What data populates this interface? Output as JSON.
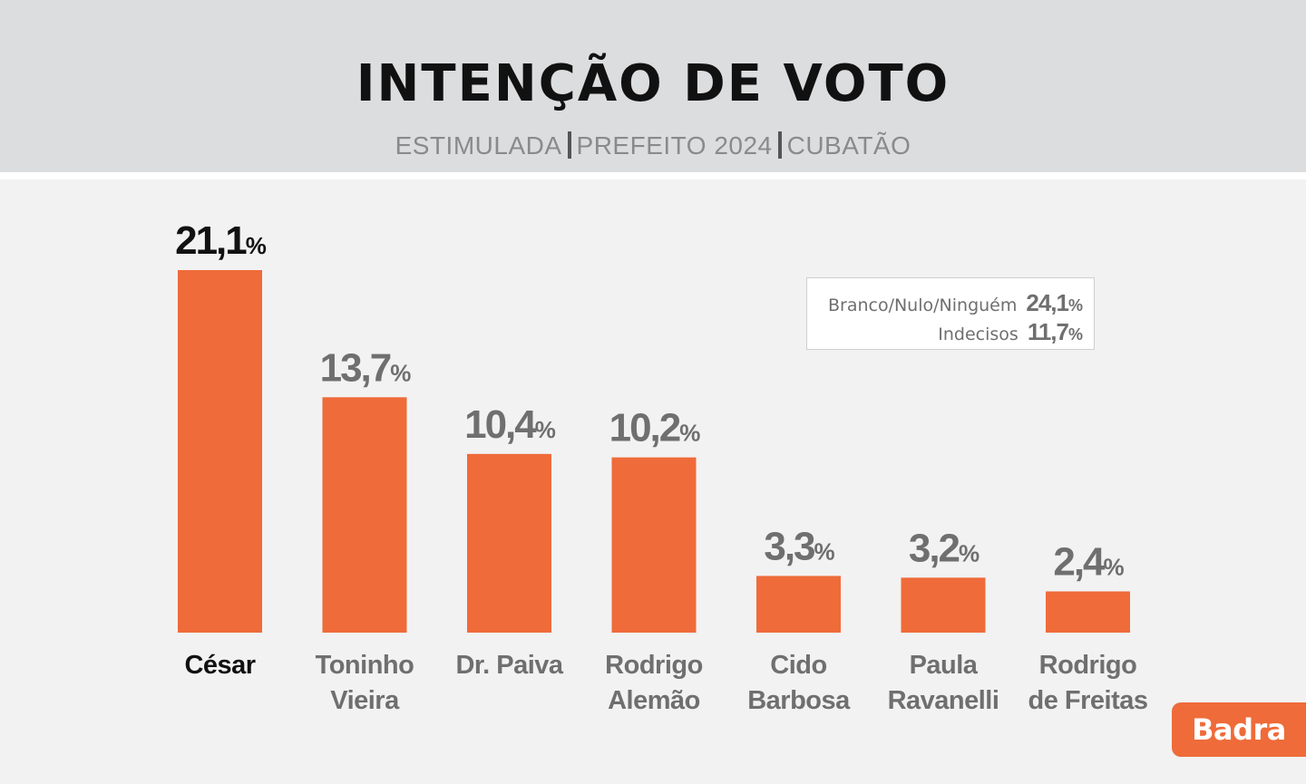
{
  "header": {
    "title": "INTENÇÃO DE VOTO",
    "subtitle_parts": [
      "ESTIMULADA",
      "PREFEITO 2024",
      "CUBATÃO"
    ]
  },
  "legend_box": {
    "rows": [
      {
        "label": "Branco/Nulo/Ninguém",
        "value": "24,1",
        "unit": "%"
      },
      {
        "label": "Indecisos",
        "value": "11,7",
        "unit": "%"
      }
    ]
  },
  "logo": {
    "text": "Badra"
  },
  "colors": {
    "bar": "#ef6b3a",
    "highlight_text": "#111111",
    "muted_text": "#6f6f6f",
    "header_bg": "#dcdddf"
  },
  "chart_data": {
    "type": "bar",
    "title": "INTENÇÃO DE VOTO",
    "subtitle": "ESTIMULADA | PREFEITO 2024 | CUBATÃO",
    "categories": [
      [
        "César"
      ],
      [
        "Toninho",
        "Vieira"
      ],
      [
        "Dr. Paiva"
      ],
      [
        "Rodrigo",
        "Alemão"
      ],
      [
        "Cido",
        "Barbosa"
      ],
      [
        "Paula",
        "Ravanelli"
      ],
      [
        "Rodrigo",
        "de Freitas"
      ]
    ],
    "values": [
      21.1,
      13.7,
      10.4,
      10.2,
      3.3,
      3.2,
      2.4
    ],
    "value_labels": [
      "21,1",
      "13,7",
      "10,4",
      "10,2",
      "3,3",
      "3,2",
      "2,4"
    ],
    "unit": "%",
    "highlight_index": 0,
    "grid": false,
    "ylim": [
      0,
      21.1
    ]
  }
}
